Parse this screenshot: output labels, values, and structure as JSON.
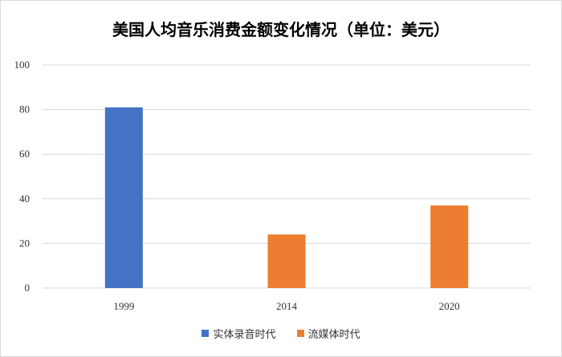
{
  "chart_data": {
    "type": "bar",
    "title": "美国人均音乐消费金额变化情况（单位：美元）",
    "categories": [
      "1999",
      "2014",
      "2020"
    ],
    "series": [
      {
        "name": "实体录音时代",
        "color": "#4472c4",
        "values": [
          81,
          null,
          null
        ]
      },
      {
        "name": "流媒体时代",
        "color": "#ed7d31",
        "values": [
          null,
          24,
          37
        ]
      }
    ],
    "ylim": [
      0,
      100
    ],
    "yticks": [
      "0",
      "20",
      "40",
      "60",
      "80",
      "100"
    ],
    "grid": true,
    "legend_position": "bottom"
  }
}
